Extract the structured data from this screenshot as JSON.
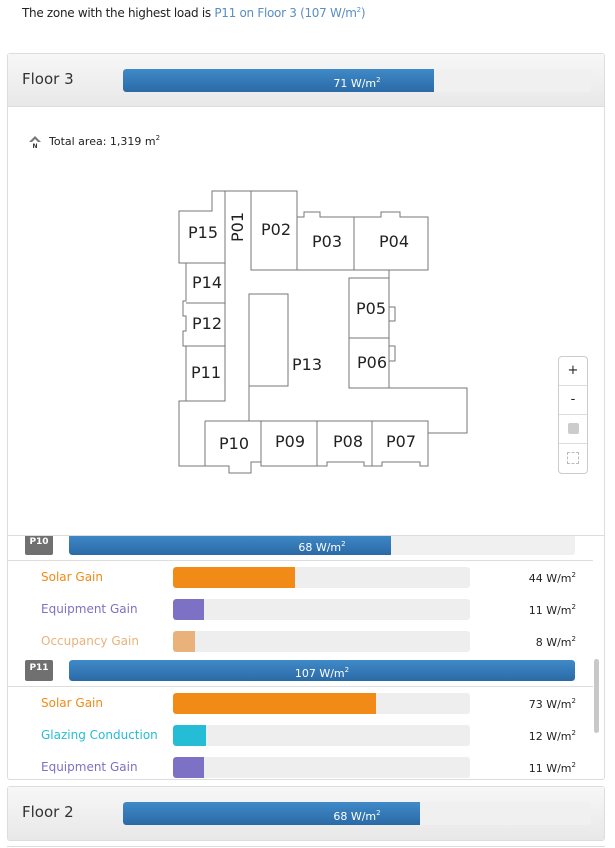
{
  "summary": {
    "prefix": "The zone with the highest load is ",
    "zone": "P11",
    "on": " on ",
    "floor": "Floor 3",
    "value": "(107 W/m",
    "close": ")",
    "sup": "2"
  },
  "unit": "W/m",
  "unit_sup": "2",
  "max_load": 107,
  "floors": [
    {
      "title": "Floor 3",
      "value": 71,
      "label": "71 W/m",
      "expanded": true,
      "total_area": "Total area: 1,319 m",
      "zones_on_plan": [
        "P01",
        "P02",
        "P03",
        "P04",
        "P05",
        "P06",
        "P07",
        "P08",
        "P09",
        "P10",
        "P11",
        "P12",
        "P13",
        "P14",
        "P15"
      ],
      "zones": [
        {
          "name": "P10",
          "value": 68,
          "label": "68 W/m",
          "gains": [
            {
              "name": "Solar Gain",
              "value": 44,
              "label": "44 W/m",
              "color": "#f28a17"
            },
            {
              "name": "Equipment Gain",
              "value": 11,
              "label": "11 W/m",
              "color": "#7c71c4"
            },
            {
              "name": "Occupancy Gain",
              "value": 8,
              "label": "8 W/m",
              "color": "#e8b27a"
            }
          ]
        },
        {
          "name": "P11",
          "value": 107,
          "label": "107 W/m",
          "gains": [
            {
              "name": "Solar Gain",
              "value": 73,
              "label": "73 W/m",
              "color": "#f28a17"
            },
            {
              "name": "Glazing Conduction",
              "value": 12,
              "label": "12 W/m",
              "color": "#25bcd6"
            },
            {
              "name": "Equipment Gain",
              "value": 11,
              "label": "11 W/m",
              "color": "#7c71c4"
            }
          ]
        }
      ]
    },
    {
      "title": "Floor 2",
      "value": 68,
      "label": "68 W/m"
    }
  ],
  "map_controls": {
    "zoom_in": "+",
    "zoom_out": "-",
    "icons": [
      "fill-toggle-icon",
      "outline-toggle-icon"
    ]
  },
  "colors": {
    "bar_blue": "#2f74b5",
    "link": "#5b8ec4",
    "badge": "#707070"
  }
}
